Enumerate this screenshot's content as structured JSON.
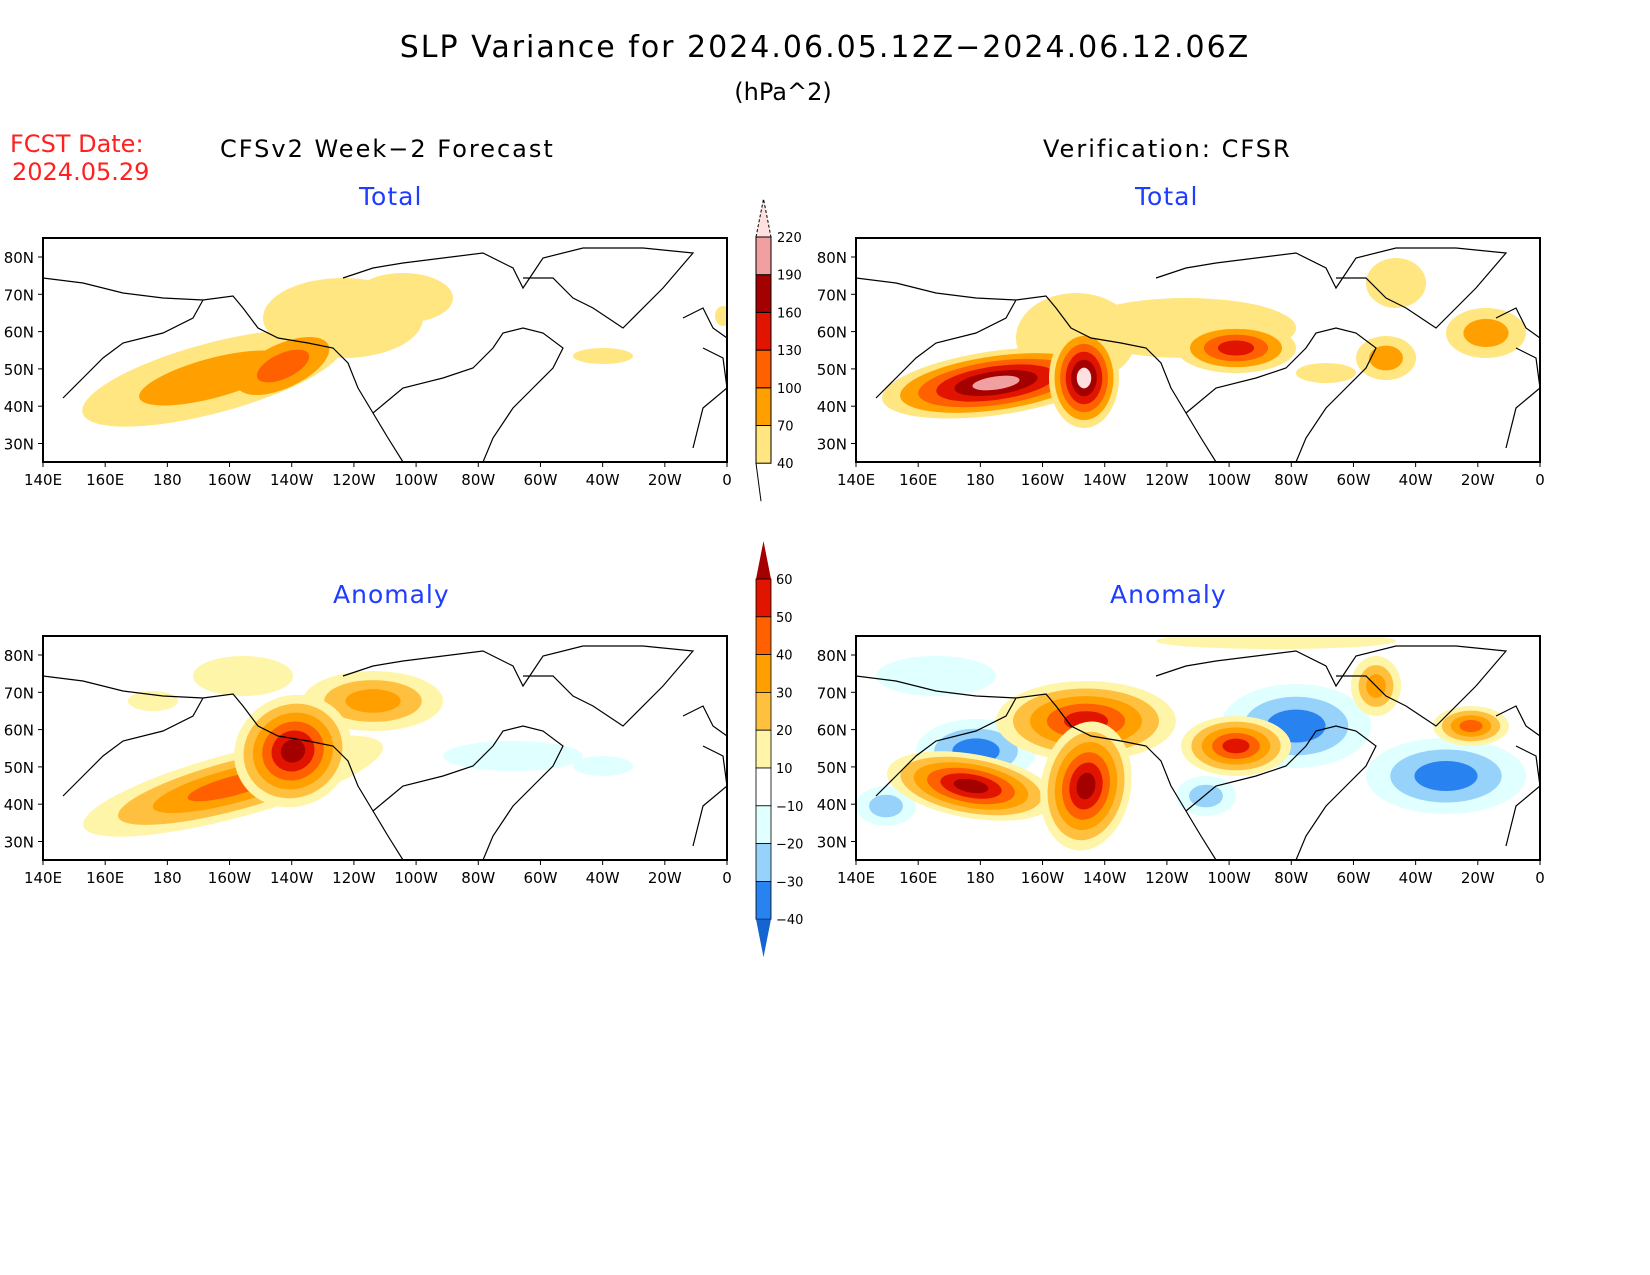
{
  "header": {
    "title": "SLP Variance for 2024.06.05.12Z−2024.06.12.06Z",
    "units": "(hPa^2)",
    "fcst_label": "FCST Date:",
    "fcst_date": "2024.05.29",
    "left_column": "CFSv2 Week−2 Forecast",
    "right_column": "Verification: CFSR"
  },
  "panels": {
    "total_left": "Total",
    "total_right": "Total",
    "anomaly_left": "Anomaly",
    "anomaly_right": "Anomaly"
  },
  "chart_data": {
    "type": "heatmap",
    "x_ticks": [
      "140E",
      "160E",
      "180",
      "160W",
      "140W",
      "120W",
      "100W",
      "80W",
      "60W",
      "40W",
      "20W",
      "0"
    ],
    "y_ticks": [
      "80N",
      "70N",
      "60N",
      "50N",
      "40N",
      "30N"
    ],
    "total_colorbar": {
      "levels": [
        "40",
        "70",
        "100",
        "130",
        "160",
        "190",
        "220"
      ],
      "colors": [
        "#ffe680",
        "#ffa000",
        "#ff6000",
        "#e11400",
        "#a50000",
        "#f0a0a0",
        "#ffe0e0"
      ]
    },
    "anomaly_colorbar": {
      "levels": [
        "60",
        "50",
        "40",
        "30",
        "20",
        "10",
        "−10",
        "−20",
        "−30",
        "−40"
      ],
      "colors": [
        "#a50000",
        "#e11400",
        "#ff6000",
        "#ffa000",
        "#ffc040",
        "#fff5a8",
        "#ffffff",
        "#e0ffff",
        "#96d2fa",
        "#2882f0",
        "#1464d2"
      ]
    }
  }
}
